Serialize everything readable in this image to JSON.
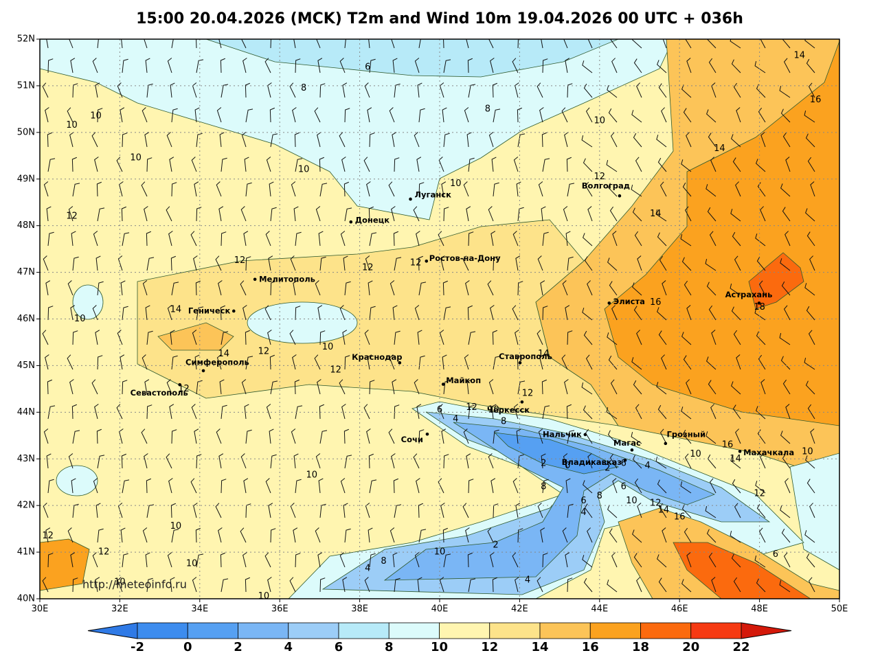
{
  "title": "15:00 20.04.2026 (MCK) T2m and Wind 10m 19.04.2026 00 UTC + 036h",
  "map": {
    "lonlim": [
      30,
      50
    ],
    "latlim": [
      40,
      52
    ],
    "xticks": [
      {
        "value": 30,
        "label": "30E"
      },
      {
        "value": 32,
        "label": "32E"
      },
      {
        "value": 34,
        "label": "34E"
      },
      {
        "value": 36,
        "label": "36E"
      },
      {
        "value": 38,
        "label": "38E"
      },
      {
        "value": 40,
        "label": "40E"
      },
      {
        "value": 42,
        "label": "42E"
      },
      {
        "value": 44,
        "label": "44E"
      },
      {
        "value": 46,
        "label": "46E"
      },
      {
        "value": 48,
        "label": "48E"
      },
      {
        "value": 50,
        "label": "50E"
      }
    ],
    "yticks": [
      {
        "value": 40,
        "label": "40N"
      },
      {
        "value": 41,
        "label": "41N"
      },
      {
        "value": 42,
        "label": "42N"
      },
      {
        "value": 43,
        "label": "43N"
      },
      {
        "value": 44,
        "label": "44N"
      },
      {
        "value": 45,
        "label": "45N"
      },
      {
        "value": 46,
        "label": "46N"
      },
      {
        "value": 47,
        "label": "47N"
      },
      {
        "value": 48,
        "label": "48N"
      },
      {
        "value": 49,
        "label": "49N"
      },
      {
        "value": 50,
        "label": "50N"
      },
      {
        "value": 51,
        "label": "51N"
      },
      {
        "value": 52,
        "label": "52N"
      }
    ],
    "cities": [
      {
        "name": "Луганск",
        "lon": 39.27,
        "lat": 48.57
      },
      {
        "name": "Донецк",
        "lon": 37.78,
        "lat": 48.08
      },
      {
        "name": "Волгоград",
        "lon": 44.5,
        "lat": 48.64
      },
      {
        "name": "Ростов-на-Дону",
        "lon": 39.67,
        "lat": 47.24
      },
      {
        "name": "Мелитополь",
        "lon": 35.38,
        "lat": 46.85
      },
      {
        "name": "Геническ",
        "lon": 34.85,
        "lat": 46.17
      },
      {
        "name": "Элиста",
        "lon": 44.24,
        "lat": 46.34
      },
      {
        "name": "Астрахань",
        "lon": 47.99,
        "lat": 46.34
      },
      {
        "name": "Краснодар",
        "lon": 39.0,
        "lat": 45.06
      },
      {
        "name": "Ставрополь",
        "lon": 42.01,
        "lat": 45.06
      },
      {
        "name": "Симферополь",
        "lon": 34.09,
        "lat": 44.89
      },
      {
        "name": "Севастополь",
        "lon": 33.5,
        "lat": 44.59
      },
      {
        "name": "Майкоп",
        "lon": 40.09,
        "lat": 44.6
      },
      {
        "name": "Черкесск",
        "lon": 42.06,
        "lat": 44.22
      },
      {
        "name": "Сочи",
        "lon": 39.69,
        "lat": 43.53
      },
      {
        "name": "Нальчик",
        "lon": 43.64,
        "lat": 43.52
      },
      {
        "name": "Магас",
        "lon": 44.81,
        "lat": 43.19
      },
      {
        "name": "Грозный",
        "lon": 45.65,
        "lat": 43.33
      },
      {
        "name": "Владикавказ",
        "lon": 44.64,
        "lat": 42.97
      },
      {
        "name": "Махачкала",
        "lon": 47.51,
        "lat": 43.16
      }
    ],
    "contour_labels": [
      {
        "value": 6,
        "lon": 38.2,
        "lat": 51.4
      },
      {
        "value": 8,
        "lon": 36.6,
        "lat": 50.95
      },
      {
        "value": 8,
        "lon": 41.2,
        "lat": 50.5
      },
      {
        "value": 10,
        "lon": 30.8,
        "lat": 50.15
      },
      {
        "value": 10,
        "lon": 31.4,
        "lat": 50.35
      },
      {
        "value": 10,
        "lon": 44.0,
        "lat": 50.25
      },
      {
        "value": 14,
        "lon": 49.0,
        "lat": 51.65
      },
      {
        "value": 16,
        "lon": 49.4,
        "lat": 50.7
      },
      {
        "value": 14,
        "lon": 47.0,
        "lat": 49.65
      },
      {
        "value": 10,
        "lon": 32.4,
        "lat": 49.45
      },
      {
        "value": 10,
        "lon": 36.6,
        "lat": 49.2
      },
      {
        "value": 10,
        "lon": 40.4,
        "lat": 48.9
      },
      {
        "value": 12,
        "lon": 44.0,
        "lat": 49.05
      },
      {
        "value": 12,
        "lon": 30.8,
        "lat": 48.2
      },
      {
        "value": 14,
        "lon": 45.4,
        "lat": 48.25
      },
      {
        "value": 12,
        "lon": 35.0,
        "lat": 47.25
      },
      {
        "value": 12,
        "lon": 38.2,
        "lat": 47.1
      },
      {
        "value": 12,
        "lon": 39.4,
        "lat": 47.2
      },
      {
        "value": 10,
        "lon": 31.0,
        "lat": 46.0
      },
      {
        "value": 14,
        "lon": 33.4,
        "lat": 46.2
      },
      {
        "value": 16,
        "lon": 45.4,
        "lat": 46.35
      },
      {
        "value": 18,
        "lon": 48.0,
        "lat": 46.25
      },
      {
        "value": 10,
        "lon": 37.2,
        "lat": 45.4
      },
      {
        "value": 14,
        "lon": 34.6,
        "lat": 45.25
      },
      {
        "value": 12,
        "lon": 35.6,
        "lat": 45.3
      },
      {
        "value": 12,
        "lon": 37.4,
        "lat": 44.9
      },
      {
        "value": 14,
        "lon": 42.6,
        "lat": 45.25
      },
      {
        "value": 12,
        "lon": 33.6,
        "lat": 44.5
      },
      {
        "value": 6,
        "lon": 40.0,
        "lat": 44.05
      },
      {
        "value": 4,
        "lon": 40.4,
        "lat": 43.85
      },
      {
        "value": 12,
        "lon": 40.8,
        "lat": 44.1
      },
      {
        "value": 12,
        "lon": 42.2,
        "lat": 44.4
      },
      {
        "value": 10,
        "lon": 41.35,
        "lat": 44.05
      },
      {
        "value": 8,
        "lon": 41.6,
        "lat": 43.8
      },
      {
        "value": 16,
        "lon": 47.2,
        "lat": 43.3
      },
      {
        "value": 10,
        "lon": 46.4,
        "lat": 43.1
      },
      {
        "value": 14,
        "lon": 47.4,
        "lat": 43.0
      },
      {
        "value": 10,
        "lon": 49.2,
        "lat": 43.15
      },
      {
        "value": 2,
        "lon": 42.6,
        "lat": 42.9
      },
      {
        "value": 0,
        "lon": 43.2,
        "lat": 42.85
      },
      {
        "value": 6,
        "lon": 44.6,
        "lat": 42.9
      },
      {
        "value": 2,
        "lon": 44.2,
        "lat": 42.8
      },
      {
        "value": 4,
        "lon": 45.2,
        "lat": 42.85
      },
      {
        "value": 10,
        "lon": 36.8,
        "lat": 42.65
      },
      {
        "value": 8,
        "lon": 42.6,
        "lat": 42.4
      },
      {
        "value": 6,
        "lon": 44.6,
        "lat": 42.4
      },
      {
        "value": 12,
        "lon": 48.0,
        "lat": 42.25
      },
      {
        "value": 6,
        "lon": 43.6,
        "lat": 42.1
      },
      {
        "value": 8,
        "lon": 44.0,
        "lat": 42.2
      },
      {
        "value": 10,
        "lon": 44.8,
        "lat": 42.1
      },
      {
        "value": 12,
        "lon": 45.4,
        "lat": 42.05
      },
      {
        "value": 4,
        "lon": 43.6,
        "lat": 41.85
      },
      {
        "value": 14,
        "lon": 45.6,
        "lat": 41.9
      },
      {
        "value": 16,
        "lon": 46.0,
        "lat": 41.75
      },
      {
        "value": 12,
        "lon": 30.2,
        "lat": 41.35
      },
      {
        "value": 10,
        "lon": 33.4,
        "lat": 41.55
      },
      {
        "value": 2,
        "lon": 41.4,
        "lat": 41.15
      },
      {
        "value": 12,
        "lon": 31.6,
        "lat": 41.0
      },
      {
        "value": 10,
        "lon": 40.0,
        "lat": 41.0
      },
      {
        "value": 6,
        "lon": 48.4,
        "lat": 40.95
      },
      {
        "value": 10,
        "lon": 33.8,
        "lat": 40.75
      },
      {
        "value": 4,
        "lon": 38.2,
        "lat": 40.65
      },
      {
        "value": 8,
        "lon": 38.6,
        "lat": 40.8
      },
      {
        "value": 4,
        "lon": 42.2,
        "lat": 40.4
      },
      {
        "value": 10,
        "lon": 32.0,
        "lat": 40.35
      },
      {
        "value": 10,
        "lon": 35.6,
        "lat": 40.05
      }
    ],
    "watermark": "http://meteoinfo.ru"
  },
  "colorbar": {
    "levels": [
      -2,
      0,
      2,
      4,
      6,
      8,
      10,
      12,
      14,
      16,
      18,
      20,
      22
    ],
    "colors": [
      "#3d8cee",
      "#56a0f2",
      "#7ab6f5",
      "#9ccdf7",
      "#b7eaf8",
      "#dcfbfb",
      "#fff5b0",
      "#fde38a",
      "#fcc458",
      "#fba21f",
      "#fb6a0e",
      "#f63a12"
    ],
    "under_color": "#2f7ae6",
    "over_color": "#d4190a"
  }
}
